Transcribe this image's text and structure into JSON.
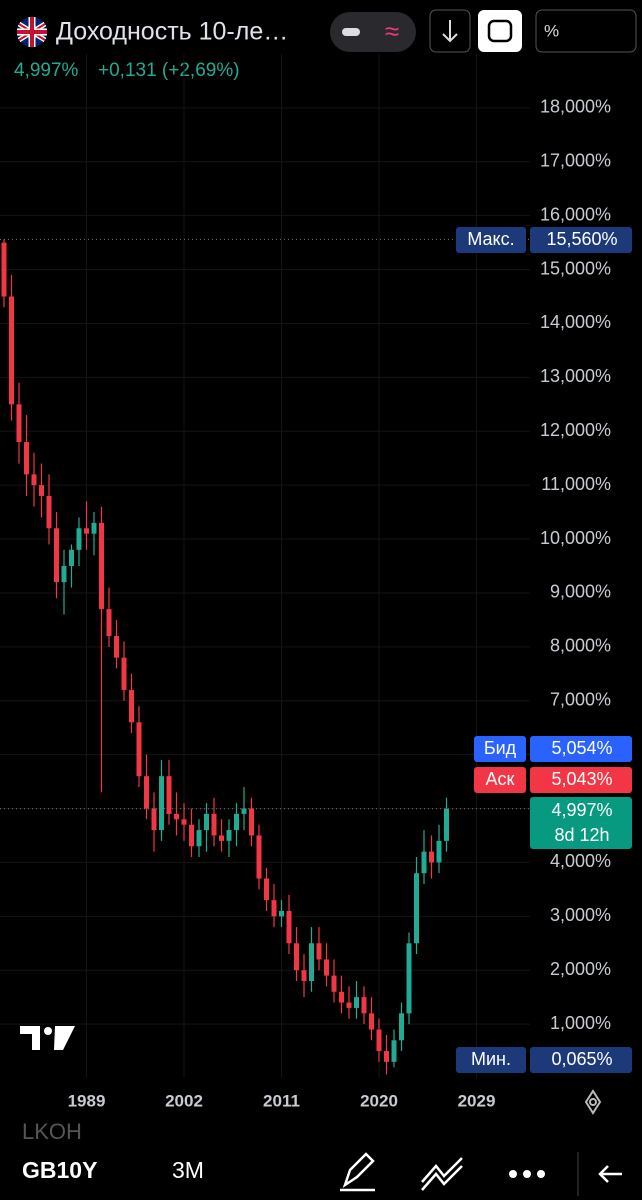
{
  "chart_data": {
    "type": "candlestick",
    "title": "Доходность 10-ле…",
    "last": "4,997%",
    "change": "+0,131 (+2,69%)",
    "unit_button": "%",
    "categories": [
      null,
      null,
      null,
      null,
      null,
      null,
      null,
      null,
      null,
      null,
      null,
      "1989",
      null,
      null,
      null,
      null,
      null,
      null,
      null,
      null,
      null,
      null,
      null,
      null,
      "2002",
      null,
      null,
      null,
      null,
      null,
      null,
      null,
      null,
      null,
      null,
      null,
      null,
      "2011",
      null,
      null,
      null,
      null,
      null,
      null,
      null,
      null,
      null,
      null,
      null,
      null,
      "2020",
      null,
      null,
      null,
      null,
      null,
      null,
      null,
      null,
      null,
      null,
      null,
      null,
      "2029",
      null
    ],
    "open": [
      15.5,
      14.5,
      12.5,
      11.8,
      11.2,
      11.0,
      10.8,
      10.2,
      9.2,
      9.5,
      9.8,
      10.2,
      10.1,
      10.3,
      8.7,
      8.2,
      7.8,
      7.2,
      6.6,
      5.6,
      5.0,
      4.6,
      5.6,
      4.9,
      4.8,
      4.7,
      4.3,
      4.6,
      4.9,
      4.5,
      4.4,
      4.6,
      4.9,
      5.0,
      4.5,
      3.7,
      3.3,
      3.0,
      3.1,
      2.5,
      2.0,
      1.8,
      2.5,
      2.2,
      1.9,
      1.6,
      1.4,
      1.3,
      1.5,
      1.2,
      0.9,
      0.5,
      0.3,
      0.7,
      1.2,
      2.5,
      3.8,
      4.2,
      4.0,
      4.4,
      null,
      null,
      null,
      null,
      null
    ],
    "high": [
      15.56,
      14.9,
      12.9,
      12.3,
      11.6,
      11.4,
      11.2,
      10.5,
      9.8,
      9.9,
      10.4,
      10.7,
      10.5,
      10.6,
      9.1,
      8.5,
      8.1,
      7.5,
      6.9,
      6.0,
      5.3,
      5.9,
      5.9,
      5.3,
      5.1,
      5.0,
      4.8,
      5.1,
      5.2,
      4.8,
      4.8,
      5.1,
      5.4,
      5.2,
      4.7,
      3.9,
      3.6,
      3.3,
      3.4,
      2.8,
      2.3,
      2.8,
      2.8,
      2.5,
      2.2,
      1.9,
      1.7,
      1.8,
      1.7,
      1.5,
      1.1,
      0.8,
      0.9,
      1.4,
      2.7,
      4.1,
      4.6,
      4.5,
      4.7,
      5.2,
      null,
      null,
      null,
      null,
      null
    ],
    "low": [
      14.3,
      12.2,
      11.4,
      10.8,
      10.6,
      10.4,
      9.9,
      8.9,
      8.6,
      9.1,
      9.5,
      9.8,
      9.7,
      5.3,
      8.0,
      7.6,
      7.0,
      6.4,
      5.4,
      4.8,
      4.2,
      4.4,
      4.7,
      4.5,
      4.4,
      4.1,
      4.1,
      4.2,
      4.3,
      4.2,
      4.1,
      4.3,
      4.6,
      4.3,
      3.5,
      3.1,
      2.8,
      2.8,
      2.3,
      1.8,
      1.5,
      1.6,
      2.0,
      1.7,
      1.4,
      1.2,
      1.1,
      1.1,
      1.0,
      0.7,
      0.3,
      0.065,
      0.2,
      0.5,
      1.0,
      2.3,
      3.6,
      3.7,
      3.8,
      4.2,
      null,
      null,
      null,
      null,
      null
    ],
    "close": [
      14.5,
      12.5,
      11.8,
      11.2,
      11.0,
      10.8,
      10.2,
      9.2,
      9.5,
      9.8,
      10.2,
      10.1,
      10.3,
      8.7,
      8.2,
      7.8,
      7.2,
      6.6,
      5.6,
      5.0,
      4.6,
      5.6,
      4.9,
      4.8,
      4.7,
      4.3,
      4.6,
      4.9,
      4.5,
      4.4,
      4.6,
      4.9,
      5.0,
      4.5,
      3.7,
      3.3,
      3.0,
      3.1,
      2.5,
      2.0,
      1.8,
      2.5,
      2.2,
      1.9,
      1.6,
      1.4,
      1.3,
      1.5,
      1.2,
      0.9,
      0.5,
      0.3,
      0.7,
      1.2,
      2.5,
      3.8,
      4.2,
      4.0,
      4.4,
      4.997,
      null,
      null,
      null,
      null,
      null
    ],
    "ylim": [
      0,
      19
    ],
    "yticks": [
      {
        "value": 1,
        "label": "1,000%"
      },
      {
        "value": 2,
        "label": "2,000%"
      },
      {
        "value": 3,
        "label": "3,000%"
      },
      {
        "value": 4,
        "label": "4,000%"
      },
      {
        "value": 5,
        "label": "5,000%"
      },
      {
        "value": 6,
        "label": "6,000%"
      },
      {
        "value": 7,
        "label": "7,000%"
      },
      {
        "value": 8,
        "label": "8,000%"
      },
      {
        "value": 9,
        "label": "9,000%"
      },
      {
        "value": 10,
        "label": "10,000%"
      },
      {
        "value": 11,
        "label": "11,000%"
      },
      {
        "value": 12,
        "label": "12,000%"
      },
      {
        "value": 13,
        "label": "13,000%"
      },
      {
        "value": 14,
        "label": "14,000%"
      },
      {
        "value": 15,
        "label": "15,000%"
      },
      {
        "value": 16,
        "label": "16,000%"
      },
      {
        "value": 17,
        "label": "17,000%"
      },
      {
        "value": 18,
        "label": "18,000%"
      }
    ],
    "grid": true,
    "colors": {
      "up": "#22ab94",
      "down": "#f23645"
    },
    "markers": [
      {
        "name": "Макс.",
        "value": 15.56,
        "label": "15,560%",
        "color": "#1c3a7a"
      },
      {
        "name": "Бид",
        "value": 5.054,
        "label": "5,054%",
        "color": "#2962ff"
      },
      {
        "name": "Аск",
        "value": 5.043,
        "label": "5,043%",
        "color": "#f23645"
      },
      {
        "value": 4.997,
        "label": "4,997%",
        "countdown": "8d 12h",
        "color": "#089981"
      },
      {
        "name": "Мин.",
        "value": 0.065,
        "label": "0,065%",
        "color": "#1c3a7a"
      }
    ]
  },
  "footer": {
    "ghost": "LKOH",
    "symbol": "GB10Y",
    "interval": "3M"
  }
}
